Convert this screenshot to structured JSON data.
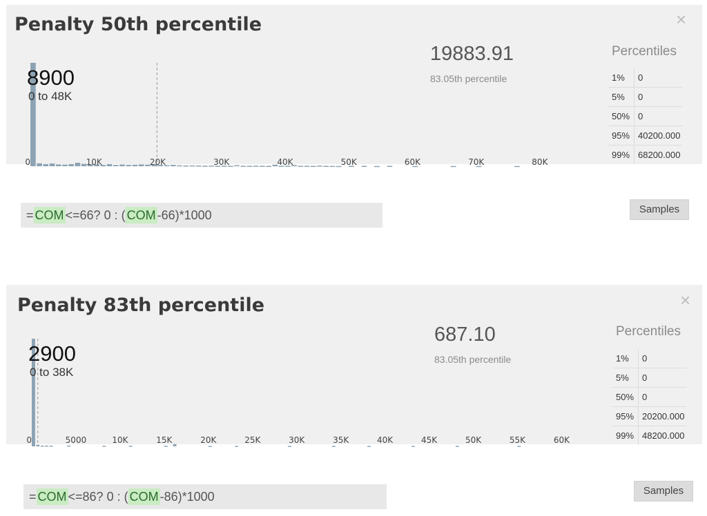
{
  "panels": [
    {
      "title": "Penalty 50th percentile",
      "close_glyph": "×",
      "stat_value": "19883.91",
      "stat_caption": "83.05th percentile",
      "peak_count": "8900",
      "peak_range": "0 to 48K",
      "percentiles_title": "Percentiles",
      "percentiles": [
        {
          "p": "1%",
          "v": "0"
        },
        {
          "p": "5%",
          "v": "0"
        },
        {
          "p": "50%",
          "v": "0"
        },
        {
          "p": "95%",
          "v": "40200.000"
        },
        {
          "p": "99%",
          "v": "68200.000"
        }
      ],
      "formula": {
        "eq": "=",
        "ref1": "COM",
        "mid": "<=66? 0 : (",
        "ref2": "COM",
        "end": "-66)*1000"
      },
      "samples_label": "Samples"
    },
    {
      "title": "Penalty 83th percentile",
      "close_glyph": "×",
      "stat_value": "687.10",
      "stat_caption": "83.05th percentile",
      "peak_count": "2900",
      "peak_range": "0 to 38K",
      "percentiles_title": "Percentiles",
      "percentiles": [
        {
          "p": "1%",
          "v": "0"
        },
        {
          "p": "5%",
          "v": "0"
        },
        {
          "p": "50%",
          "v": "0"
        },
        {
          "p": "95%",
          "v": "20200.000"
        },
        {
          "p": "99%",
          "v": "48200.000"
        }
      ],
      "formula": {
        "eq": "=",
        "ref1": "COM",
        "mid": "<=86? 0 : (",
        "ref2": "COM",
        "end": "-86)*1000"
      },
      "samples_label": "Samples"
    }
  ],
  "chart_data": [
    {
      "type": "bar",
      "title": "Penalty 50th percentile",
      "xlim": [
        0,
        85000
      ],
      "ylim": [
        0,
        8900
      ],
      "x_ticks": [
        "0",
        "10K",
        "20K",
        "30K",
        "40K",
        "50K",
        "60K",
        "70K",
        "80K"
      ],
      "x_tick_values": [
        0,
        10000,
        20000,
        30000,
        40000,
        50000,
        60000,
        70000,
        80000
      ],
      "bin_width": 1000,
      "bin_starts": [
        0,
        1000,
        2000,
        3000,
        4000,
        5000,
        6000,
        7000,
        8000,
        9000,
        10000,
        11000,
        12000,
        13000,
        14000,
        15000,
        16000,
        17000,
        18000,
        19000,
        20000,
        21000,
        22000,
        23000,
        24000,
        25000,
        26000,
        27000,
        28000,
        29000,
        30000,
        31000,
        32000,
        33000,
        34000,
        35000,
        36000,
        37000,
        38000,
        39000,
        40000,
        41000,
        42000,
        43000,
        44000,
        45000,
        46000,
        47000,
        48000,
        50000,
        52000,
        54000,
        56000,
        60000,
        66000,
        70000,
        76000
      ],
      "values": [
        8900,
        250,
        180,
        240,
        160,
        140,
        180,
        300,
        200,
        170,
        160,
        120,
        180,
        110,
        150,
        120,
        130,
        160,
        140,
        180,
        110,
        90,
        120,
        80,
        60,
        70,
        60,
        50,
        60,
        40,
        50,
        40,
        90,
        40,
        40,
        50,
        40,
        30,
        130,
        40,
        40,
        100,
        40,
        40,
        30,
        60,
        30,
        30,
        20,
        40,
        30,
        20,
        30,
        20,
        20,
        20,
        20
      ],
      "marker_x": 19883.91,
      "peak_label": "8900",
      "peak_range": "0 to 48K"
    },
    {
      "type": "bar",
      "title": "Penalty 83th percentile",
      "xlim": [
        0,
        62000
      ],
      "ylim": [
        0,
        2900
      ],
      "x_ticks": [
        "0",
        "5000",
        "10K",
        "15K",
        "20K",
        "25K",
        "30K",
        "35K",
        "40K",
        "45K",
        "50K",
        "55K",
        "60K"
      ],
      "x_tick_values": [
        0,
        5000,
        10000,
        15000,
        20000,
        25000,
        30000,
        35000,
        40000,
        45000,
        50000,
        55000,
        60000
      ],
      "bin_width": 500,
      "bin_starts": [
        0,
        500,
        1000,
        1500,
        2000,
        4000,
        8000,
        11000,
        15000,
        16000,
        20000,
        23000,
        29000,
        34000,
        38000,
        43000,
        48000,
        55000
      ],
      "values": [
        2900,
        40,
        20,
        20,
        20,
        20,
        15,
        15,
        15,
        60,
        10,
        10,
        10,
        10,
        10,
        10,
        10,
        10
      ],
      "marker_x": 687.1,
      "peak_label": "2900",
      "peak_range": "0 to 38K"
    }
  ]
}
